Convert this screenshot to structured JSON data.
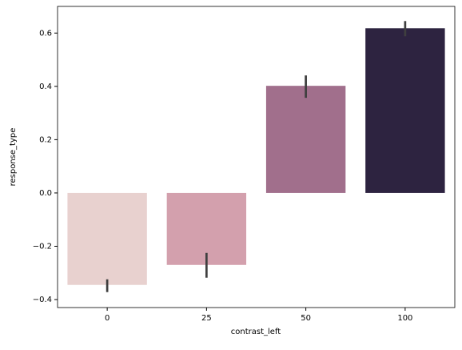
{
  "chart_data": {
    "type": "bar",
    "x_label": "contrast_left",
    "y_label": "response_type",
    "categories": [
      "0",
      "25",
      "50",
      "100"
    ],
    "values": [
      -0.345,
      -0.27,
      0.402,
      0.618
    ],
    "ci": [
      [
        -0.372,
        -0.324
      ],
      [
        -0.318,
        -0.225
      ],
      [
        0.357,
        0.441
      ],
      [
        0.588,
        0.645
      ]
    ],
    "colors": [
      "#e8d1cf",
      "#d3a0ad",
      "#a16f8c",
      "#2d2340"
    ],
    "errorbar_color": "#3f3f3f",
    "ylim": [
      -0.43,
      0.7
    ],
    "yticks": [
      {
        "value": -0.4,
        "label": "−0.4"
      },
      {
        "value": -0.2,
        "label": "−0.2"
      },
      {
        "value": 0,
        "label": "0.0"
      },
      0.2,
      0.4,
      0.6
    ]
  }
}
